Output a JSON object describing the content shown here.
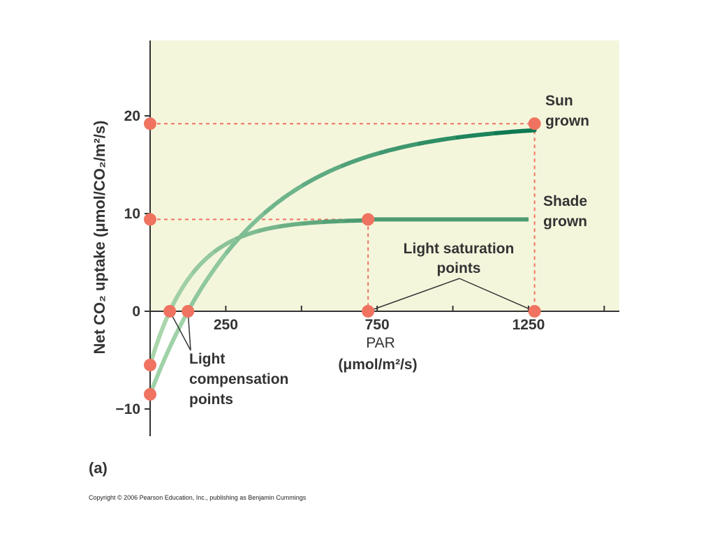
{
  "chart_data": {
    "type": "line",
    "title": "",
    "xlabel_line1": "PAR",
    "xlabel_line2": "(μmol/m²/s)",
    "ylabel": "Net CO₂ uptake (μmol/CO₂/m²/s)",
    "xlim": [
      0,
      1550
    ],
    "ylim": [
      -13,
      28
    ],
    "x_ticks": [
      250,
      750,
      1250
    ],
    "x_minor_ticks": [
      0,
      250,
      500,
      750,
      1000,
      1250,
      1500
    ],
    "y_ticks": [
      -10,
      0,
      10,
      20
    ],
    "panel_label": "(a)",
    "series": [
      {
        "name": "Sun grown",
        "color": "#0e7a52",
        "compensation_point": 125,
        "saturation_point": 1270,
        "start_value": -8.5,
        "saturation_value": 19.2
      },
      {
        "name": "Shade grown",
        "color": "#5aa579",
        "compensation_point": 65,
        "saturation_point": 720,
        "start_value": -5.5,
        "saturation_value": 9.4
      }
    ],
    "annotations": {
      "sun_line1": "Sun",
      "sun_line2": "grown",
      "shade_line1": "Shade",
      "shade_line2": "grown",
      "saturation_line1": "Light saturation",
      "saturation_line2": "points",
      "compensation_line1": "Light",
      "compensation_line2": "compensation",
      "compensation_line3": "points"
    },
    "marker_color": "#ef7360",
    "background_color": "#f4f6dc"
  },
  "copyright": "Copyright © 2006 Pearson Education, Inc., publishing as Benjamin Cummings"
}
